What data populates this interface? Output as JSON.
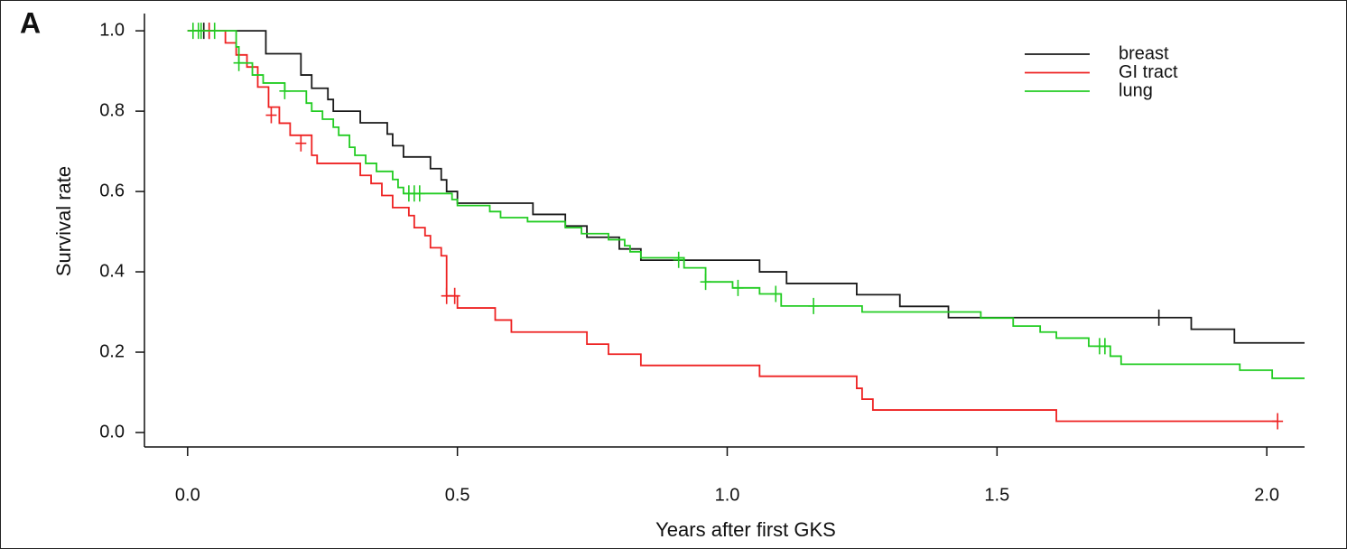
{
  "chart_data": {
    "type": "km",
    "panel_label": "A",
    "xlabel": "Years after first GKS",
    "ylabel": "Survival rate",
    "xlim": [
      -0.08,
      2.07
    ],
    "ylim": [
      -0.036,
      1.043
    ],
    "xticks": [
      {
        "value": 0,
        "label": "0.0"
      },
      {
        "value": 0.5,
        "label": "0.5"
      },
      {
        "value": 1,
        "label": "1.0"
      },
      {
        "value": 1.5,
        "label": "1.5"
      },
      {
        "value": 2,
        "label": "2.0"
      }
    ],
    "yticks": [
      {
        "value": 0,
        "label": "0.0"
      },
      {
        "value": 0.2,
        "label": "0.2"
      },
      {
        "value": 0.4,
        "label": "0.4"
      },
      {
        "value": 0.6,
        "label": "0.6"
      },
      {
        "value": 0.8,
        "label": "0.8"
      },
      {
        "value": 1,
        "label": "1.0"
      }
    ],
    "legend": "top-right",
    "series": [
      {
        "name": "breast",
        "color": "#1a1a1a",
        "x": [
          0,
          0.145,
          0.21,
          0.23,
          0.26,
          0.27,
          0.32,
          0.37,
          0.38,
          0.4,
          0.45,
          0.47,
          0.48,
          0.5,
          0.64,
          0.7,
          0.74,
          0.8,
          0.84,
          1.06,
          1.11,
          1.24,
          1.32,
          1.41,
          1.86,
          1.94,
          2.07
        ],
        "values": [
          1.0,
          0.943,
          0.89,
          0.857,
          0.829,
          0.8,
          0.771,
          0.743,
          0.714,
          0.686,
          0.657,
          0.629,
          0.6,
          0.571,
          0.543,
          0.514,
          0.486,
          0.457,
          0.429,
          0.4,
          0.371,
          0.343,
          0.314,
          0.286,
          0.257,
          0.223,
          0.223
        ],
        "censor_x": [
          0.03,
          0.04,
          1.8
        ],
        "censor_values": [
          1.0,
          1.0,
          0.286
        ]
      },
      {
        "name": "GI tract",
        "color": "#ee2222",
        "x": [
          0,
          0.07,
          0.09,
          0.11,
          0.13,
          0.15,
          0.17,
          0.19,
          0.23,
          0.24,
          0.32,
          0.34,
          0.36,
          0.38,
          0.41,
          0.42,
          0.44,
          0.45,
          0.47,
          0.48,
          0.5,
          0.57,
          0.6,
          0.74,
          0.78,
          0.84,
          1.06,
          1.24,
          1.25,
          1.27,
          1.61,
          2.02
        ],
        "values": [
          1.0,
          0.97,
          0.94,
          0.91,
          0.86,
          0.81,
          0.77,
          0.74,
          0.69,
          0.67,
          0.64,
          0.62,
          0.59,
          0.56,
          0.54,
          0.51,
          0.49,
          0.46,
          0.44,
          0.34,
          0.31,
          0.28,
          0.25,
          0.22,
          0.195,
          0.167,
          0.14,
          0.11,
          0.083,
          0.056,
          0.028,
          0.028
        ],
        "censor_x": [
          0.04,
          0.155,
          0.21,
          0.48,
          0.495,
          2.02
        ],
        "censor_values": [
          1.0,
          0.79,
          0.72,
          0.34,
          0.34,
          0.028
        ]
      },
      {
        "name": "lung",
        "color": "#22cc22",
        "x": [
          0,
          0.09,
          0.095,
          0.12,
          0.14,
          0.18,
          0.22,
          0.23,
          0.25,
          0.27,
          0.28,
          0.3,
          0.31,
          0.33,
          0.35,
          0.38,
          0.39,
          0.4,
          0.49,
          0.5,
          0.56,
          0.58,
          0.63,
          0.7,
          0.73,
          0.78,
          0.81,
          0.82,
          0.84,
          0.92,
          0.96,
          1.01,
          1.06,
          1.1,
          1.25,
          1.47,
          1.53,
          1.58,
          1.61,
          1.67,
          1.71,
          1.73,
          1.95,
          2.01,
          2.07
        ],
        "values": [
          1.0,
          0.96,
          0.92,
          0.89,
          0.87,
          0.85,
          0.82,
          0.8,
          0.78,
          0.76,
          0.74,
          0.71,
          0.69,
          0.67,
          0.65,
          0.63,
          0.61,
          0.595,
          0.58,
          0.565,
          0.55,
          0.535,
          0.525,
          0.51,
          0.495,
          0.48,
          0.465,
          0.45,
          0.435,
          0.41,
          0.375,
          0.36,
          0.345,
          0.315,
          0.3,
          0.285,
          0.265,
          0.25,
          0.235,
          0.215,
          0.19,
          0.17,
          0.155,
          0.135,
          0.135
        ],
        "censor_x": [
          0.01,
          0.02,
          0.025,
          0.05,
          0.095,
          0.18,
          0.41,
          0.42,
          0.43,
          0.91,
          0.96,
          1.02,
          1.09,
          1.16,
          1.69,
          1.7
        ],
        "censor_values": [
          1.0,
          1.0,
          1.0,
          1.0,
          0.92,
          0.85,
          0.595,
          0.595,
          0.595,
          0.43,
          0.375,
          0.36,
          0.345,
          0.315,
          0.215,
          0.215
        ]
      }
    ]
  }
}
